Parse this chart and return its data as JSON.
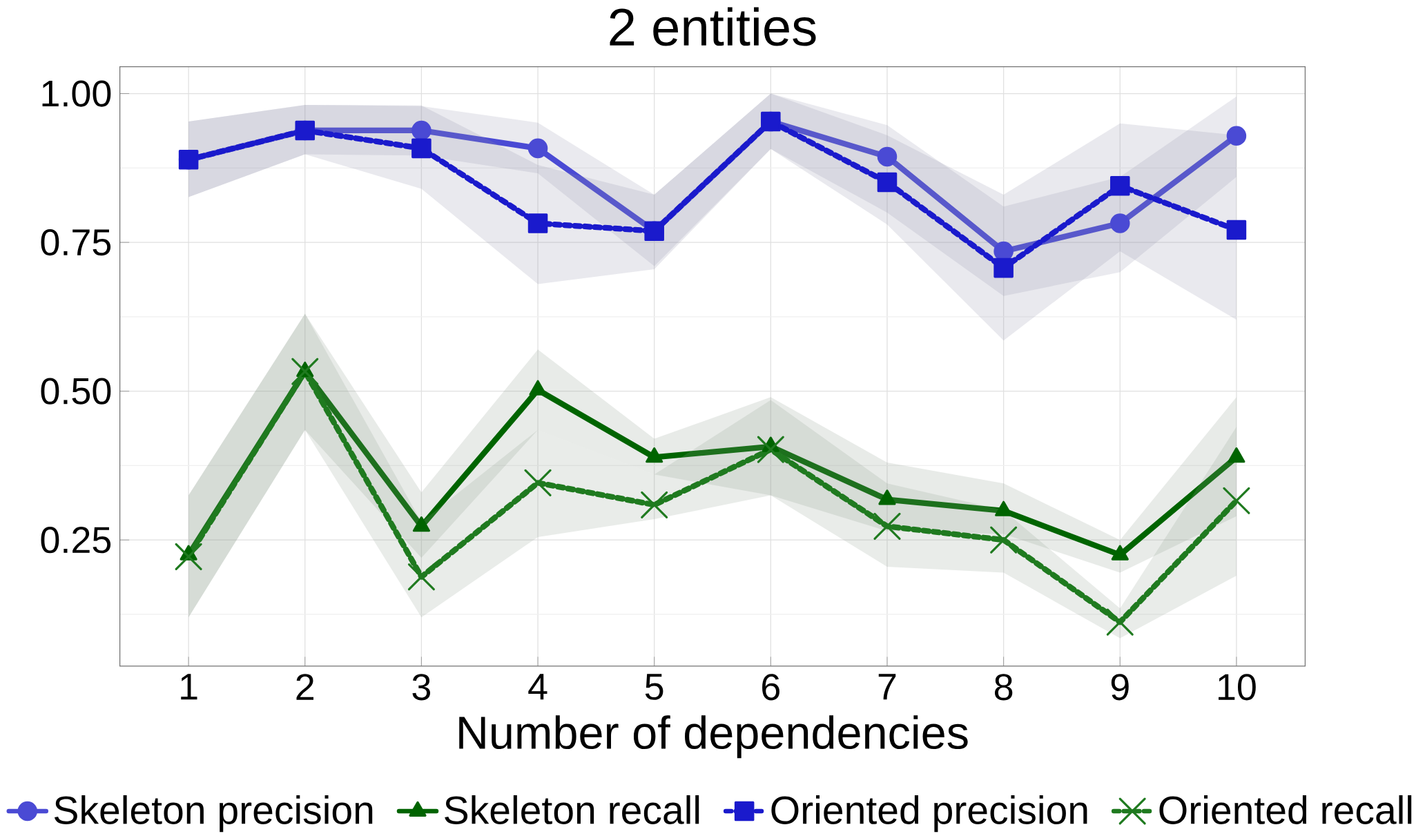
{
  "chart_data": {
    "type": "line",
    "title": "2 entities",
    "xlabel": "Number of dependencies",
    "x": [
      1,
      2,
      3,
      4,
      5,
      6,
      7,
      8,
      9,
      10
    ],
    "xlim": [
      0.41,
      10.59
    ],
    "ylim": [
      0.038,
      1.045
    ],
    "xticks": [
      1,
      2,
      3,
      4,
      5,
      6,
      7,
      8,
      9,
      10
    ],
    "yticks": [
      {
        "value": 0.25,
        "label": "0.25"
      },
      {
        "value": 0.5,
        "label": "0.50"
      },
      {
        "value": 0.75,
        "label": "0.75"
      },
      {
        "value": 1.0,
        "label": "1.00"
      }
    ],
    "grid": true,
    "legend": "bottom",
    "series": [
      {
        "name": "Skeleton precision",
        "color": "#4a4ad4",
        "marker": "circle",
        "line_style": "solid",
        "values": [
          0.889,
          0.938,
          0.938,
          0.908,
          0.769,
          0.953,
          0.894,
          0.735,
          0.782,
          0.929
        ],
        "lower": [
          0.826,
          0.898,
          0.896,
          0.866,
          0.71,
          0.907,
          0.8,
          0.66,
          0.7,
          0.86
        ],
        "upper": [
          0.953,
          0.981,
          0.979,
          0.951,
          0.83,
          1.0,
          0.947,
          0.81,
          0.86,
          0.995
        ]
      },
      {
        "name": "Skeleton recall",
        "color": "#006400",
        "marker": "triangle",
        "line_style": "solid",
        "values": [
          0.225,
          0.533,
          0.273,
          0.502,
          0.389,
          0.407,
          0.318,
          0.299,
          0.225,
          0.389
        ],
        "lower": [
          0.12,
          0.435,
          0.22,
          0.435,
          0.36,
          0.325,
          0.265,
          0.26,
          0.195,
          0.29
        ],
        "upper": [
          0.325,
          0.63,
          0.33,
          0.57,
          0.42,
          0.49,
          0.38,
          0.345,
          0.25,
          0.49
        ]
      },
      {
        "name": "Oriented precision",
        "color": "#1a1acc",
        "marker": "square",
        "line_style": "dotted",
        "values": [
          0.889,
          0.938,
          0.908,
          0.782,
          0.769,
          0.953,
          0.851,
          0.707,
          0.845,
          0.771
        ],
        "lower": [
          0.826,
          0.898,
          0.84,
          0.68,
          0.705,
          0.907,
          0.78,
          0.585,
          0.735,
          0.62
        ],
        "upper": [
          0.953,
          0.981,
          0.98,
          0.88,
          0.83,
          1.0,
          0.93,
          0.83,
          0.95,
          0.93
        ]
      },
      {
        "name": "Oriented recall",
        "color": "#1f7a1f",
        "marker": "cross",
        "line_style": "dotted",
        "values": [
          0.222,
          0.533,
          0.188,
          0.346,
          0.309,
          0.402,
          0.273,
          0.25,
          0.112,
          0.316
        ],
        "lower": [
          0.12,
          0.435,
          0.12,
          0.255,
          0.285,
          0.325,
          0.205,
          0.195,
          0.085,
          0.19
        ],
        "upper": [
          0.325,
          0.63,
          0.28,
          0.435,
          0.36,
          0.485,
          0.345,
          0.3,
          0.135,
          0.44
        ]
      }
    ]
  }
}
